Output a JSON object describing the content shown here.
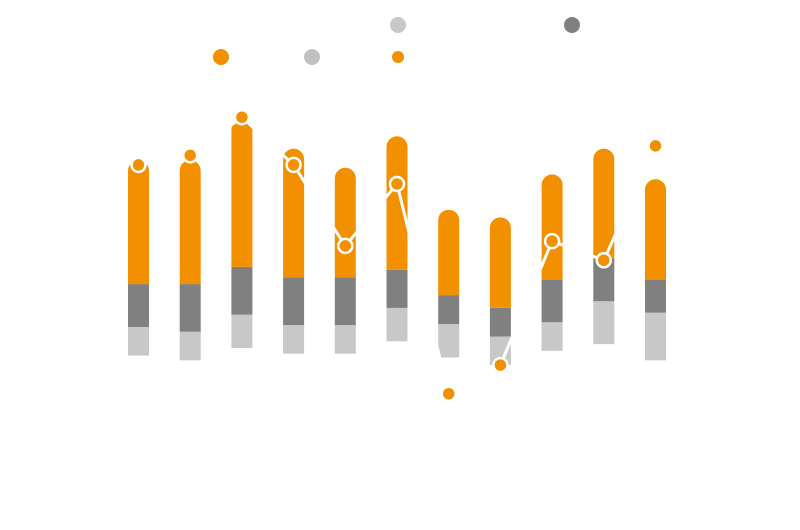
{
  "chart_data": {
    "type": "bar",
    "stacked": true,
    "title": "",
    "xlabel": "",
    "ylabel": "",
    "ylim": [
      -12,
      31
    ],
    "categories": [
      "",
      "",
      "",
      "",
      "",
      "",
      "",
      "",
      "",
      "",
      ""
    ],
    "series": [
      {
        "name": "",
        "color": "#c8c8c8",
        "kind": "bar",
        "values": [
          3,
          3,
          3.5,
          3,
          3,
          3.5,
          3.5,
          3,
          3,
          4.5,
          5
        ]
      },
      {
        "name": "",
        "color": "#808080",
        "kind": "bar",
        "values": [
          4.5,
          5,
          5,
          5,
          5,
          4,
          3,
          3,
          4.5,
          4.5,
          3.5
        ]
      },
      {
        "name": "",
        "color": "#f39000",
        "kind": "bar",
        "values": [
          13,
          13,
          15.5,
          13.5,
          11.5,
          14,
          9,
          9.5,
          11,
          11.5,
          10.5
        ]
      }
    ],
    "line": {
      "name": "",
      "color": "#ffffff",
      "marker_color": "#f39000",
      "values": [
        20,
        21,
        25,
        20,
        11.5,
        18,
        -4,
        -1,
        12,
        10,
        22
      ]
    },
    "legend": [
      {
        "label": "",
        "color": "#f39000",
        "position": "top"
      },
      {
        "label": "",
        "color": "#c0c0c0",
        "position": "top"
      },
      {
        "label": "",
        "color": "#f39000",
        "position": "top"
      },
      {
        "label": "",
        "color": "#c8c8c8",
        "position": "top"
      },
      {
        "label": "",
        "color": "#808080",
        "position": "top"
      }
    ]
  }
}
